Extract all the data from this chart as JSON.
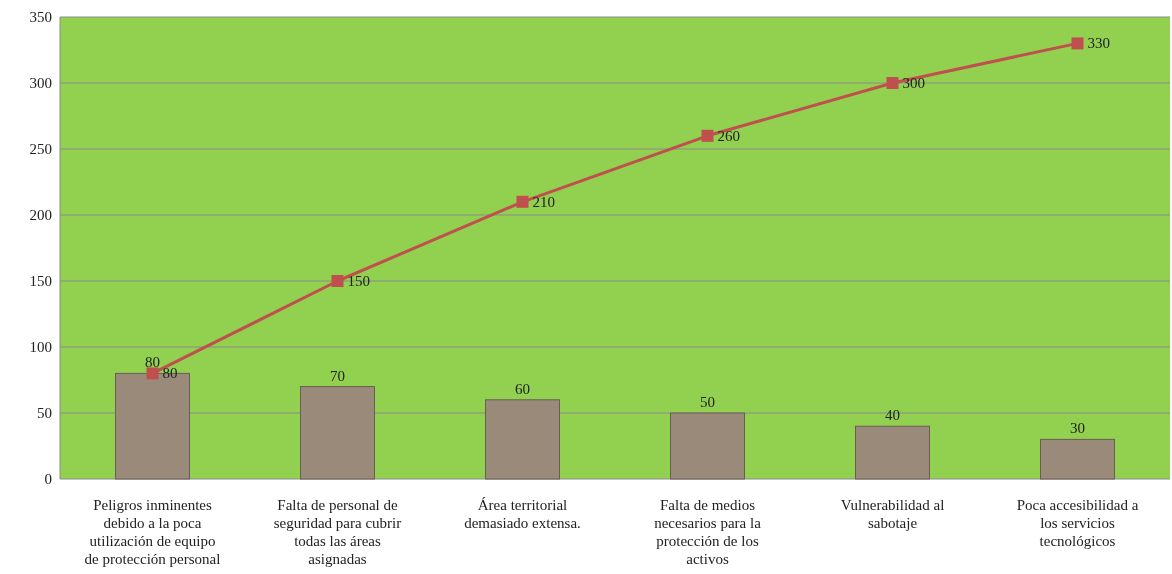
{
  "chart_data": {
    "type": "bar",
    "categories": [
      "Peligros inminentes debido a la poca utilización de equipo de protección personal",
      "Falta de personal de seguridad para cubrir todas las áreas asignadas",
      "Área territorial demasiado extensa.",
      "Falta de medios necesarios para la protección de los activos",
      "Vulnerabilidad al sabotaje",
      "Poca accesibilidad a los servicios tecnológicos"
    ],
    "series": [
      {
        "color": "#9a8a7a",
        "values": [
          80,
          70,
          60,
          50,
          40,
          30
        ]
      },
      {
        "type": "line",
        "color": "#c0504d",
        "marker": "square",
        "values": [
          80,
          150,
          210,
          260,
          300,
          330
        ]
      }
    ],
    "ylim": [
      0,
      350
    ],
    "yticks": [
      0,
      50,
      100,
      150,
      200,
      250,
      300,
      350
    ],
    "grid": "y",
    "data_labels": true
  }
}
